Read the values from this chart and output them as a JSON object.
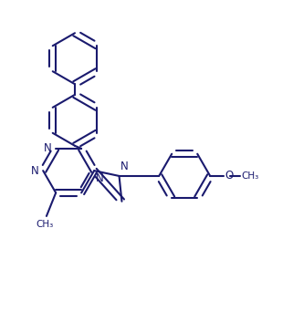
{
  "bg_color": "#ffffff",
  "line_color": "#1a1a6e",
  "line_width": 1.5,
  "figsize": [
    3.21,
    3.64
  ],
  "dpi": 100,
  "xlim": [
    0,
    9
  ],
  "ylim": [
    0,
    10.5
  ]
}
